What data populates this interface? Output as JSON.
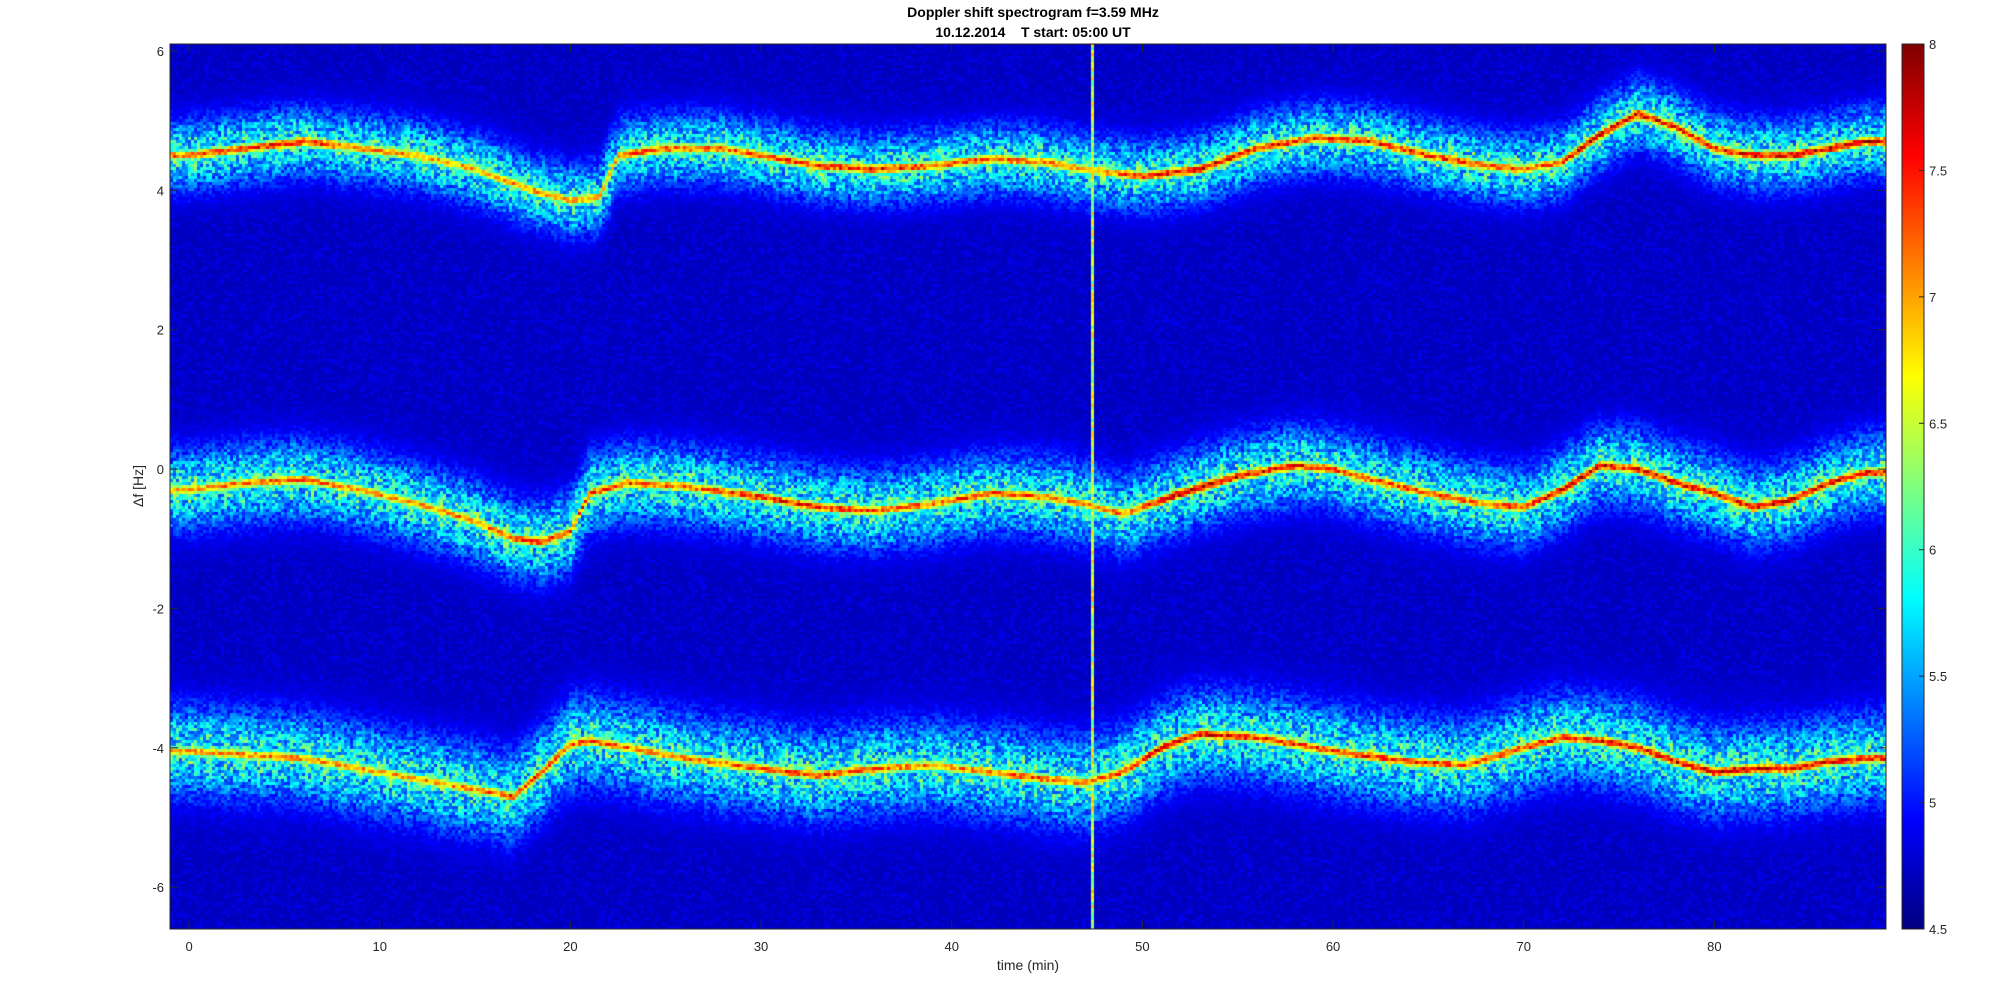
{
  "figure": {
    "title_line1": "Doppler shift spectrogram f=3.59 MHz",
    "title_line2": "10.12.2014    T start: 05:00 UT"
  },
  "chart_data": {
    "type": "heatmap",
    "title": "Doppler shift spectrogram f=3.59 MHz",
    "subtitle": "10.12.2014    T start: 05:00 UT",
    "xlabel": "time (min)",
    "ylabel": "Δf [Hz]",
    "xlim": [
      -1,
      89
    ],
    "ylim": [
      -6.6,
      6.1
    ],
    "xticks": [
      0,
      10,
      20,
      30,
      40,
      50,
      60,
      70,
      80
    ],
    "yticks": [
      6,
      4,
      2,
      0,
      -2,
      -4,
      -6
    ],
    "colorbar": {
      "min": 4.5,
      "max": 8,
      "ticks": [
        8,
        7.5,
        7,
        6.5,
        6,
        5.5,
        5,
        4.5
      ],
      "colormap": "jet"
    },
    "background_level": 4.7,
    "vertical_interference_line": {
      "time_min": 47.4,
      "level": 6.5
    },
    "traces": [
      {
        "label": "upper",
        "time": [
          0,
          3,
          6,
          9,
          12,
          15,
          18,
          20,
          21.5,
          22.5,
          25,
          28,
          30,
          33,
          36,
          39,
          42,
          45,
          47,
          50,
          53,
          56,
          59,
          62,
          65,
          68,
          70,
          72,
          74,
          76,
          78,
          80,
          82,
          84,
          86,
          88
        ],
        "df_hz": [
          4.5,
          4.6,
          4.7,
          4.6,
          4.5,
          4.3,
          4.0,
          3.85,
          3.9,
          4.5,
          4.6,
          4.6,
          4.5,
          4.35,
          4.3,
          4.35,
          4.45,
          4.4,
          4.3,
          4.2,
          4.3,
          4.6,
          4.75,
          4.7,
          4.5,
          4.35,
          4.3,
          4.4,
          4.8,
          5.1,
          4.9,
          4.6,
          4.5,
          4.5,
          4.6,
          4.7
        ],
        "level": [
          7.2,
          7.4,
          7.5,
          7.2,
          7.0,
          7.0,
          7.1,
          7.0,
          7.1,
          7.3,
          7.3,
          7.2,
          7.3,
          7.4,
          7.5,
          7.3,
          7.3,
          7.2,
          7.0,
          7.4,
          7.6,
          7.5,
          7.4,
          7.5,
          7.4,
          7.3,
          7.2,
          7.4,
          7.7,
          7.6,
          7.5,
          7.4,
          7.5,
          7.6,
          7.7,
          7.6
        ],
        "spread_hz": 0.35
      },
      {
        "label": "middle",
        "time": [
          0,
          3,
          6,
          9,
          12,
          15,
          17,
          18.5,
          20,
          21,
          23,
          26,
          30,
          33,
          36,
          39,
          42,
          45,
          47,
          49,
          52,
          55,
          58,
          60,
          62,
          65,
          68,
          70,
          72,
          74,
          76,
          78,
          80,
          82,
          84,
          86,
          88
        ],
        "df_hz": [
          -0.3,
          -0.2,
          -0.15,
          -0.3,
          -0.5,
          -0.75,
          -1.0,
          -1.05,
          -0.9,
          -0.35,
          -0.2,
          -0.25,
          -0.4,
          -0.55,
          -0.6,
          -0.5,
          -0.35,
          -0.4,
          -0.5,
          -0.65,
          -0.35,
          -0.1,
          0.05,
          0.0,
          -0.15,
          -0.35,
          -0.5,
          -0.55,
          -0.3,
          0.05,
          0.0,
          -0.2,
          -0.35,
          -0.55,
          -0.45,
          -0.2,
          -0.05
        ],
        "level": [
          7.0,
          7.2,
          7.3,
          7.0,
          7.0,
          7.1,
          7.3,
          7.5,
          7.3,
          7.4,
          7.3,
          7.2,
          7.4,
          7.5,
          7.3,
          7.2,
          7.4,
          7.2,
          7.0,
          7.2,
          7.8,
          7.6,
          7.5,
          7.4,
          7.4,
          7.3,
          7.3,
          7.4,
          7.7,
          7.6,
          7.5,
          7.6,
          7.5,
          7.6,
          7.7,
          7.6,
          7.5
        ],
        "spread_hz": 0.4
      },
      {
        "label": "lower",
        "time": [
          0,
          3,
          6,
          9,
          12,
          15,
          17,
          18.5,
          20,
          21,
          23,
          26,
          30,
          33,
          36,
          39,
          42,
          45,
          47,
          49,
          51,
          53,
          56,
          60,
          64,
          67,
          70,
          72,
          74,
          76,
          78,
          80,
          82,
          84,
          86,
          88
        ],
        "df_hz": [
          -4.05,
          -4.1,
          -4.15,
          -4.3,
          -4.45,
          -4.6,
          -4.7,
          -4.35,
          -3.95,
          -3.9,
          -4.0,
          -4.15,
          -4.3,
          -4.4,
          -4.3,
          -4.25,
          -4.35,
          -4.45,
          -4.5,
          -4.35,
          -4.0,
          -3.8,
          -3.85,
          -4.05,
          -4.2,
          -4.25,
          -4.0,
          -3.85,
          -3.9,
          -4.0,
          -4.2,
          -4.35,
          -4.3,
          -4.3,
          -4.2,
          -4.15
        ],
        "level": [
          7.0,
          7.1,
          7.1,
          7.0,
          7.0,
          7.1,
          7.3,
          7.5,
          7.2,
          7.3,
          7.2,
          7.1,
          7.3,
          7.4,
          7.2,
          7.1,
          7.2,
          7.3,
          7.2,
          7.3,
          7.7,
          7.6,
          7.5,
          7.4,
          7.4,
          7.3,
          7.4,
          7.4,
          7.6,
          7.5,
          7.6,
          7.7,
          7.8,
          7.6,
          7.7,
          7.5
        ],
        "spread_hz": 0.45
      }
    ]
  }
}
